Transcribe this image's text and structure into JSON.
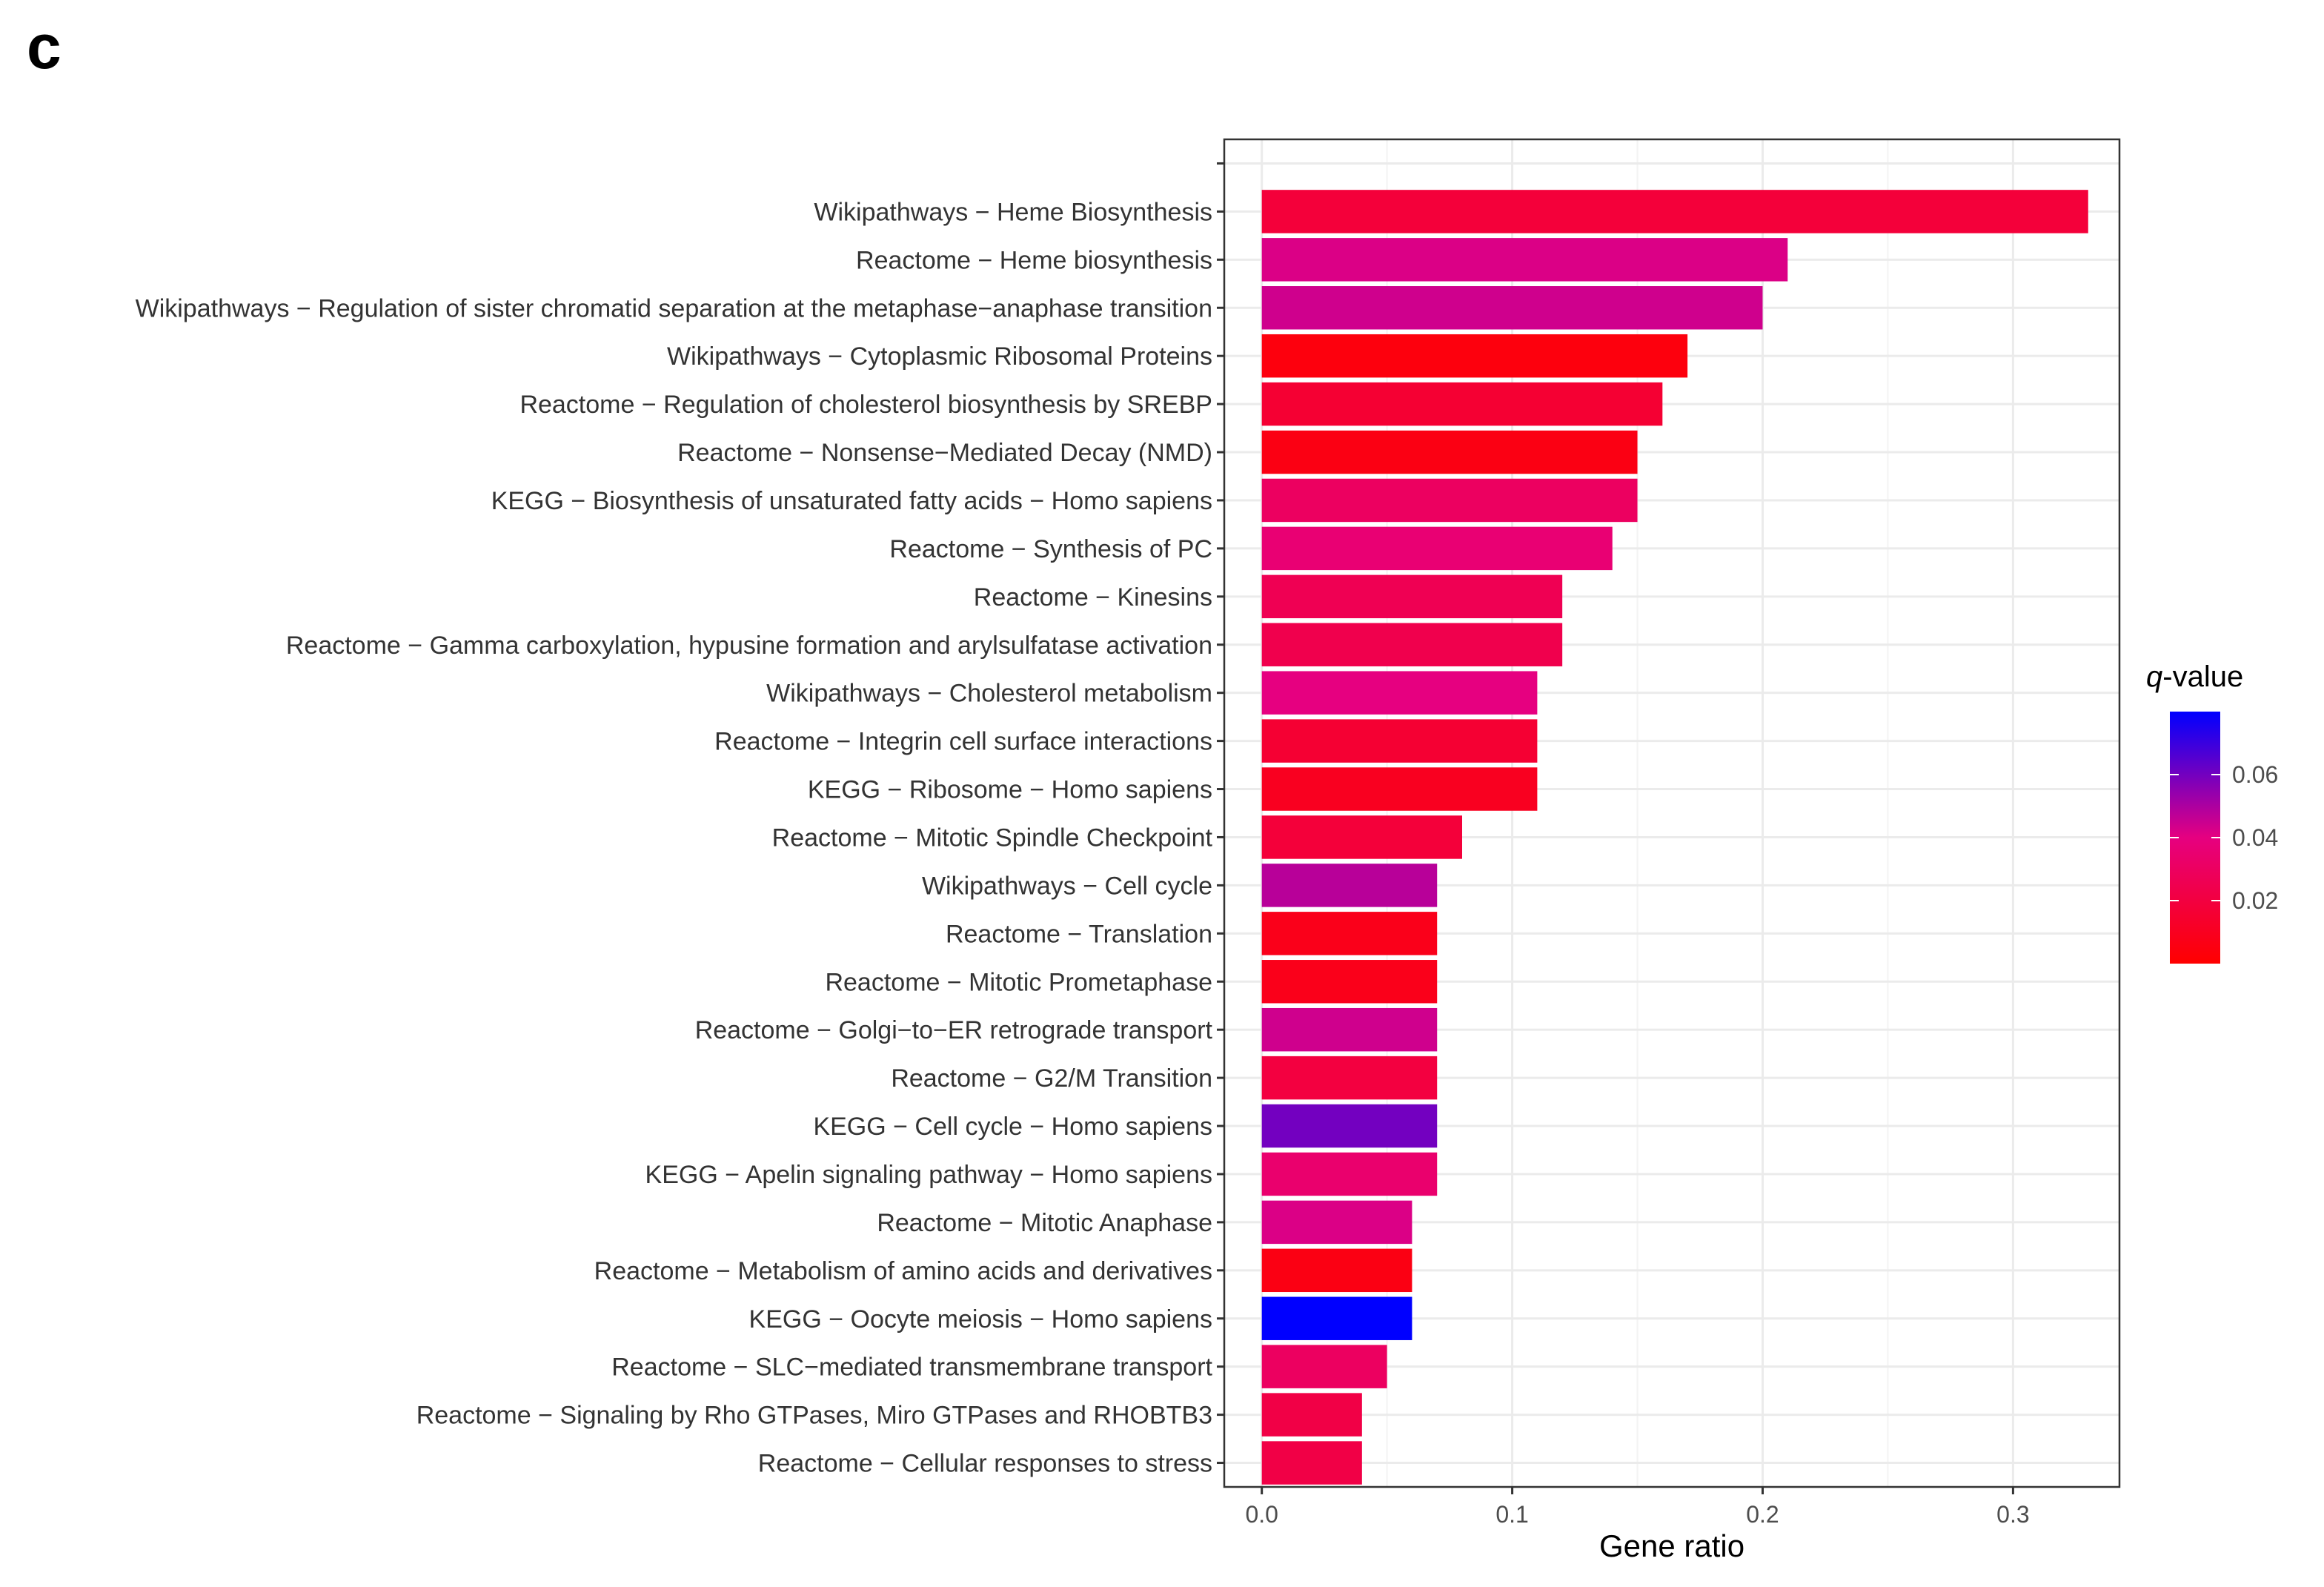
{
  "panel_label": "c",
  "chart_data": {
    "type": "bar",
    "orientation": "horizontal",
    "xlabel": "Gene ratio",
    "ylabel": "",
    "xlim": [
      -0.015,
      0.3425
    ],
    "xticks": [
      0.0,
      0.1,
      0.2,
      0.3
    ],
    "xtick_labels": [
      "0.0",
      "0.1",
      "0.2",
      "0.3"
    ],
    "grid": true,
    "legend": {
      "placement": "right",
      "title_italic": "q",
      "title_rest": "-value",
      "range": [
        0.0,
        0.08
      ],
      "ticks": [
        0.02,
        0.04,
        0.06
      ],
      "tick_labels": [
        "0.02",
        "0.04",
        "0.06"
      ],
      "low_color": "#ff0000",
      "high_color": "#0000ff"
    },
    "categories": [
      "Wikipathways − Heme Biosynthesis",
      "Reactome − Heme biosynthesis",
      "Wikipathways − Regulation of sister chromatid separation at the metaphase−anaphase transition",
      "Wikipathways − Cytoplasmic Ribosomal Proteins",
      "Reactome − Regulation of cholesterol biosynthesis by SREBP",
      "Reactome − Nonsense−Mediated Decay (NMD)",
      "KEGG − Biosynthesis of unsaturated fatty acids − Homo sapiens",
      "Reactome − Synthesis of PC",
      "Reactome − Kinesins",
      "Reactome − Gamma carboxylation, hypusine formation and arylsulfatase activation",
      "Wikipathways − Cholesterol metabolism",
      "Reactome − Integrin cell surface interactions",
      "KEGG − Ribosome − Homo sapiens",
      "Reactome − Mitotic Spindle Checkpoint",
      "Wikipathways − Cell cycle",
      "Reactome − Translation",
      "Reactome − Mitotic Prometaphase",
      "Reactome − Golgi−to−ER retrograde transport",
      "Reactome − G2/M Transition",
      "KEGG − Cell cycle − Homo sapiens",
      "KEGG − Apelin signaling pathway − Homo sapiens",
      "Reactome − Mitotic Anaphase",
      "Reactome − Metabolism of amino acids and derivatives",
      "KEGG − Oocyte meiosis − Homo sapiens",
      "Reactome − SLC−mediated transmembrane transport",
      "Reactome − Signaling by Rho GTPases, Miro GTPases and RHOBTB3",
      "Reactome − Cellular responses to stress"
    ],
    "values": [
      0.33,
      0.21,
      0.2,
      0.17,
      0.16,
      0.15,
      0.15,
      0.14,
      0.12,
      0.12,
      0.11,
      0.11,
      0.11,
      0.08,
      0.07,
      0.07,
      0.07,
      0.07,
      0.07,
      0.07,
      0.07,
      0.06,
      0.06,
      0.06,
      0.05,
      0.04,
      0.04
    ],
    "q_values": [
      0.018,
      0.042,
      0.044,
      0.004,
      0.016,
      0.006,
      0.03,
      0.036,
      0.026,
      0.024,
      0.04,
      0.016,
      0.01,
      0.018,
      0.048,
      0.008,
      0.008,
      0.044,
      0.02,
      0.06,
      0.034,
      0.042,
      0.006,
      0.08,
      0.03,
      0.022,
      0.022
    ]
  }
}
